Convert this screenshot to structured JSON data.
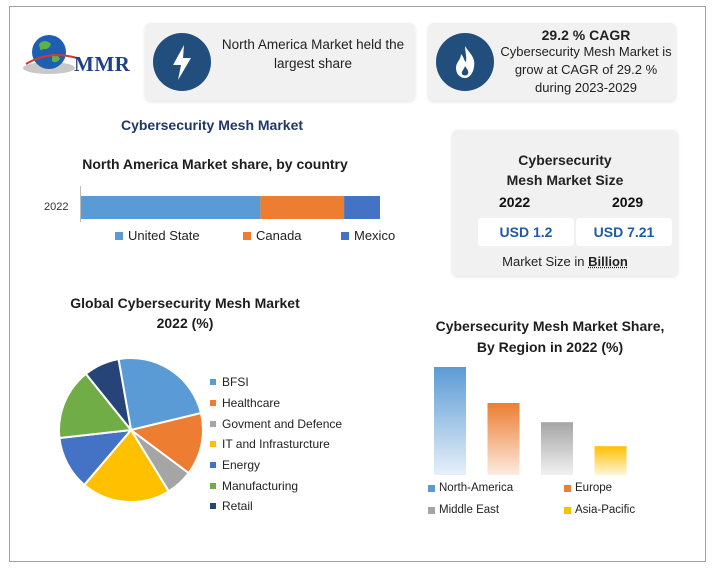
{
  "brand": {
    "logo_text": "MMR"
  },
  "highlights": {
    "region_text": "North America Market held the largest share",
    "cagr_title": "29.2 % CAGR",
    "cagr_text": "Cybersecurity Mesh Market is grow at CAGR of 29.2 % during 2023-2029"
  },
  "market_size": {
    "title": "Cybersecurity Mesh Market Size",
    "years": [
      "2022",
      "2029"
    ],
    "values": [
      "USD 1.2",
      "USD 7.21"
    ],
    "note_prefix": "Market Size in ",
    "note_unit": "Billion"
  },
  "colors": {
    "blue": "#5b9bd5",
    "orange": "#ed7d31",
    "gray": "#a5a5a5",
    "yellow": "#ffc000",
    "dark_blue": "#4472c4",
    "green": "#70ad47",
    "navy": "#264478",
    "icon_bg": "#214e7d"
  },
  "icons": [
    "globe-logo-icon",
    "lightning-icon",
    "flame-icon"
  ],
  "chart_data": [
    {
      "type": "bar",
      "orientation": "horizontal",
      "stacked": true,
      "title": "North America Market share, by country",
      "categories": [
        "2022"
      ],
      "series": [
        {
          "name": "United State",
          "values": [
            60
          ]
        },
        {
          "name": "Canada",
          "values": [
            28
          ]
        },
        {
          "name": "Mexico",
          "values": [
            12
          ]
        }
      ],
      "legend": "bottom"
    },
    {
      "type": "pie",
      "title": "Global Cybersecurity Mesh Market 2022 (%)",
      "labels": [
        "BFSI",
        "Healthcare",
        "Govment and Defence",
        "IT and Infrasturcture",
        "Energy",
        "Manufacturing",
        "Retail"
      ],
      "values": [
        24,
        14,
        6,
        20,
        12,
        16,
        8
      ],
      "legend": "right"
    },
    {
      "type": "bar",
      "title": "Cybersecurity Mesh Market Share, By Region in 2022 (%)",
      "categories": [
        "North-America",
        "Europe",
        "Middle East",
        "Asia-Pacific"
      ],
      "values": [
        45,
        30,
        22,
        12
      ],
      "legend": "bottom"
    }
  ]
}
